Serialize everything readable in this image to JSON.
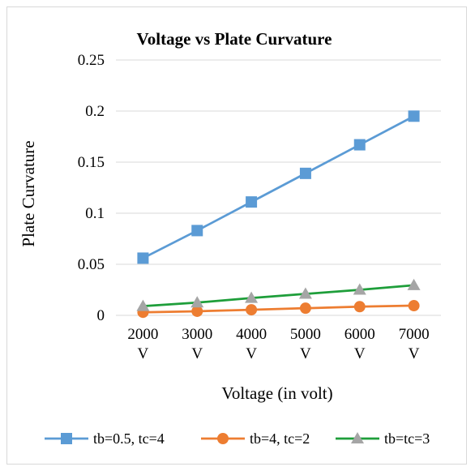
{
  "chart_data": {
    "type": "line",
    "title": "Voltage vs Plate Curvature",
    "xlabel": "Voltage (in volt)",
    "ylabel": "Plate Curvature",
    "categories": [
      "2000 V",
      "3000 V",
      "4000 V",
      "5000 V",
      "6000 V",
      "7000 V"
    ],
    "ylim": [
      0,
      0.25
    ],
    "yticks": [
      "0",
      "0.05",
      "0.1",
      "0.15",
      "0.2",
      "0.25"
    ],
    "grid": true,
    "legend_position": "bottom",
    "series": [
      {
        "name": "tb=0.5, tc=4",
        "marker": "square",
        "color": "#5b9bd5",
        "values": [
          0.056,
          0.083,
          0.111,
          0.139,
          0.167,
          0.195
        ]
      },
      {
        "name": "tb=4, tc=2",
        "marker": "circle",
        "color": "#ed7d31",
        "values": [
          0.003,
          0.004,
          0.0055,
          0.007,
          0.0085,
          0.0095
        ]
      },
      {
        "name": "tb=tc=3",
        "marker": "triangle",
        "color": "#a5a5a5",
        "line_color": "#1e9e3a",
        "values": [
          0.009,
          0.0125,
          0.017,
          0.021,
          0.025,
          0.0295
        ]
      }
    ]
  }
}
